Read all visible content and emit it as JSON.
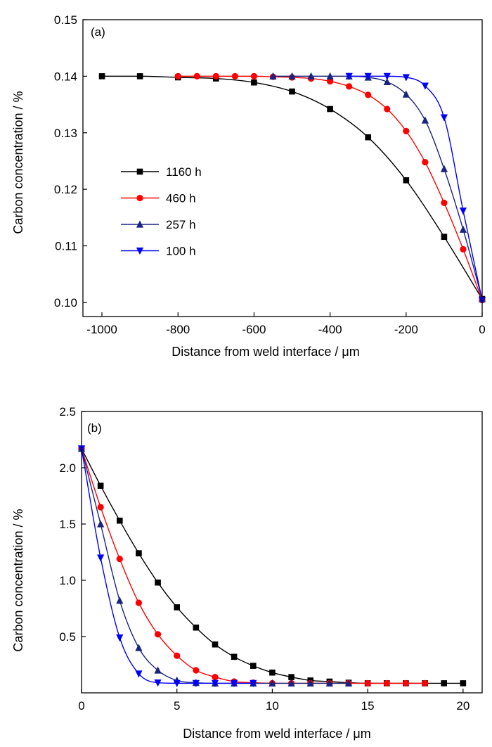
{
  "chart_data": [
    {
      "panel": "a",
      "type": "line",
      "panel_label": "(a)",
      "title": "",
      "xlabel": "Distance from weld interface / μm",
      "ylabel": "Carbon concentration / %",
      "xlim": [
        -1050,
        0
      ],
      "ylim": [
        0.0975,
        0.15
      ],
      "xticks": [
        -1000,
        -800,
        -600,
        -400,
        -200,
        0
      ],
      "xtick_labels": [
        "-1000",
        "-800",
        "-600",
        "-400",
        "-200",
        "0"
      ],
      "yticks": [
        0.1,
        0.11,
        0.12,
        0.13,
        0.14,
        0.15
      ],
      "ytick_labels": [
        "0.10",
        "0.11",
        "0.12",
        "0.13",
        "0.14",
        "0.15"
      ],
      "legend_position": "middle-left",
      "grid": false,
      "series": [
        {
          "name": "1160 h",
          "color": "#000000",
          "marker": "square",
          "x": [
            -1000,
            -900,
            -800,
            -700,
            -600,
            -500,
            -400,
            -300,
            -200,
            -100,
            0
          ],
          "y": [
            0.14,
            0.14,
            0.1398,
            0.1396,
            0.1389,
            0.1373,
            0.1342,
            0.1292,
            0.1216,
            0.1116,
            0.1006
          ]
        },
        {
          "name": "460 h",
          "color": "#ff0000",
          "marker": "circle",
          "x": [
            -800,
            -750,
            -700,
            -650,
            -600,
            -550,
            -500,
            -450,
            -400,
            -350,
            -300,
            -250,
            -200,
            -150,
            -100,
            -50,
            0
          ],
          "y": [
            0.14,
            0.14,
            0.14,
            0.14,
            0.14,
            0.1399,
            0.1398,
            0.1396,
            0.1391,
            0.1382,
            0.1367,
            0.1342,
            0.1303,
            0.1248,
            0.1176,
            0.1094,
            0.1004
          ]
        },
        {
          "name": "257 h",
          "color": "#1a237e",
          "marker": "triangle-up",
          "x": [
            -550,
            -500,
            -450,
            -400,
            -350,
            -300,
            -250,
            -200,
            -150,
            -100,
            -50,
            0
          ],
          "y": [
            0.14,
            0.14,
            0.14,
            0.14,
            0.14,
            0.1398,
            0.139,
            0.1368,
            0.1322,
            0.1236,
            0.1129,
            0.1006
          ]
        },
        {
          "name": "100 h",
          "color": "#0000ff",
          "marker": "triangle-down",
          "x": [
            -350,
            -300,
            -250,
            -200,
            -150,
            -100,
            -50,
            0
          ],
          "y": [
            0.14,
            0.14,
            0.14,
            0.1398,
            0.1383,
            0.1327,
            0.1162,
            0.1004
          ]
        }
      ]
    },
    {
      "panel": "b",
      "type": "line",
      "panel_label": "(b)",
      "title": "",
      "xlabel": "Distance from weld interface / μm",
      "ylabel": "Carbon concentration / %",
      "xlim": [
        0,
        21
      ],
      "ylim": [
        0,
        2.5
      ],
      "xticks": [
        0,
        5,
        10,
        15,
        20
      ],
      "xtick_labels": [
        "0",
        "5",
        "10",
        "15",
        "20"
      ],
      "yticks": [
        0.5,
        1.0,
        1.5,
        2.0,
        2.5
      ],
      "ytick_labels": [
        "0.5",
        "1.0",
        "1.5",
        "2.0",
        "2.5"
      ],
      "grid": false,
      "series": [
        {
          "name": "1160 h",
          "color": "#000000",
          "marker": "square",
          "x": [
            0,
            1,
            2,
            3,
            4,
            5,
            6,
            7,
            8,
            9,
            10,
            11,
            12,
            13,
            14,
            15,
            16,
            17,
            18,
            19,
            20
          ],
          "y": [
            2.17,
            1.84,
            1.53,
            1.24,
            0.98,
            0.76,
            0.58,
            0.43,
            0.32,
            0.24,
            0.18,
            0.14,
            0.11,
            0.1,
            0.09,
            0.085,
            0.085,
            0.085,
            0.085,
            0.085,
            0.085
          ]
        },
        {
          "name": "460 h",
          "color": "#ff0000",
          "marker": "circle",
          "x": [
            0,
            1,
            2,
            3,
            4,
            5,
            6,
            7,
            8,
            9,
            10,
            11,
            12,
            13,
            14,
            15,
            16,
            17,
            18
          ],
          "y": [
            2.17,
            1.65,
            1.19,
            0.8,
            0.52,
            0.33,
            0.2,
            0.14,
            0.1,
            0.09,
            0.085,
            0.085,
            0.085,
            0.085,
            0.085,
            0.085,
            0.085,
            0.085,
            0.085
          ]
        },
        {
          "name": "257 h",
          "color": "#1a237e",
          "marker": "triangle-up",
          "x": [
            0,
            1,
            2,
            3,
            4,
            5,
            6,
            7,
            8,
            9,
            10,
            11,
            12,
            13,
            14
          ],
          "y": [
            2.17,
            1.5,
            0.82,
            0.4,
            0.2,
            0.11,
            0.09,
            0.085,
            0.085,
            0.085,
            0.085,
            0.085,
            0.085,
            0.085,
            0.085
          ]
        },
        {
          "name": "100 h",
          "color": "#0000ff",
          "marker": "triangle-down",
          "x": [
            0,
            1,
            2,
            3,
            4,
            5,
            6,
            7,
            8,
            9
          ],
          "y": [
            2.17,
            1.2,
            0.49,
            0.17,
            0.09,
            0.085,
            0.085,
            0.085,
            0.085,
            0.085
          ]
        }
      ]
    }
  ]
}
